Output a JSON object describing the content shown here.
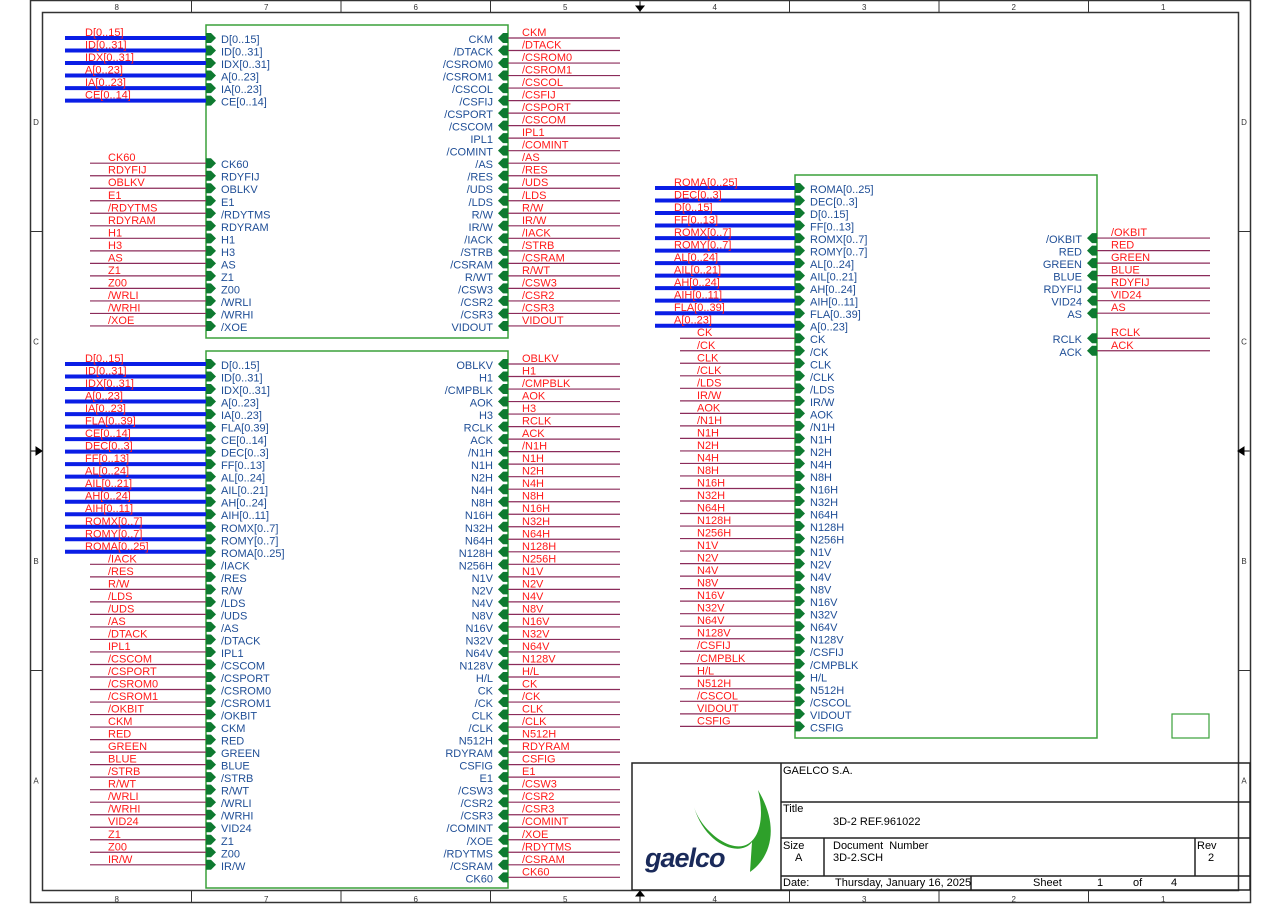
{
  "colors": {
    "bus": "#0a1ee6",
    "wire": "#8b2b5a",
    "net_label": "#ff1a1a",
    "pin_label": "#1f4e96",
    "block": "#3aa03a",
    "pin": "#0e7a30",
    "frame": "#333333"
  },
  "ruler": {
    "columns": [
      "8",
      "7",
      "6",
      "5",
      "4",
      "3",
      "2",
      "1"
    ],
    "rows": [
      "D",
      "C",
      "B",
      "A"
    ]
  },
  "blocks": [
    {
      "id": "block-1",
      "left_pins": [
        "D[0..15]",
        "ID[0..31]",
        "IDX[0..31]",
        "A[0..23]",
        "IA[0..23]",
        "CE[0..14]",
        "",
        "",
        "",
        "",
        "CK60",
        "RDYFIJ",
        "OBLKV",
        "E1",
        "/RDYTMS",
        "RDYRAM",
        "H1",
        "H3",
        "AS",
        "Z1",
        "Z00",
        "/WRLI",
        "/WRHI",
        "/XOE"
      ],
      "left_nets": [
        "D[0..15]",
        "ID[0..31]",
        "IDX[0..31]",
        "A[0..23]",
        "IA[0..23]",
        "CE[0..14]",
        "",
        "",
        "",
        "",
        "CK60",
        "RDYFIJ",
        "OBLKV",
        "E1",
        "/RDYTMS",
        "RDYRAM",
        "H1",
        "H3",
        "AS",
        "Z1",
        "Z00",
        "/WRLI",
        "/WRHI",
        "/XOE"
      ],
      "bus_count": 6,
      "right_pins": [
        "CKM",
        "/DTACK",
        "/CSROM0",
        "/CSROM1",
        "/CSCOL",
        "/CSFIJ",
        "/CSPORT",
        "/CSCOM",
        "IPL1",
        "/COMINT",
        "/AS",
        "/RES",
        "/UDS",
        "/LDS",
        "R/W",
        "IR/W",
        "/IACK",
        "/STRB",
        "/CSRAM",
        "R/WT",
        "/CSW3",
        "/CSR2",
        "/CSR3",
        "VIDOUT"
      ],
      "right_nets": [
        "CKM",
        "/DTACK",
        "/CSROM0",
        "/CSROM1",
        "/CSCOL",
        "/CSFIJ",
        "/CSPORT",
        "/CSCOM",
        "IPL1",
        "/COMINT",
        "/AS",
        "/RES",
        "/UDS",
        "/LDS",
        "R/W",
        "IR/W",
        "/IACK",
        "/STRB",
        "/CSRAM",
        "R/WT",
        "/CSW3",
        "/CSR2",
        "/CSR3",
        "VIDOUT"
      ]
    },
    {
      "id": "block-2",
      "left_pins": [
        "D[0..15]",
        "ID[0..31]",
        "IDX[0..31]",
        "A[0..23]",
        "IA[0..23]",
        "FLA[0.39]",
        "CE[0..14]",
        "DEC[0..3]",
        "FF[0..13]",
        "AL[0..24]",
        "AIL[0..21]",
        "AH[0..24]",
        "AIH[0..11]",
        "ROMX[0..7]",
        "ROMY[0..7]",
        "ROMA[0..25]",
        "/IACK",
        "/RES",
        "R/W",
        "/LDS",
        "/UDS",
        "/AS",
        "/DTACK",
        "IPL1",
        "/CSCOM",
        "/CSPORT",
        "/CSROM0",
        "/CSROM1",
        "/OKBIT",
        "CKM",
        "RED",
        "GREEN",
        "BLUE",
        "/STRB",
        "R/WT",
        "/WRLI",
        "/WRHI",
        "VID24",
        "Z1",
        "Z00",
        "IR/W"
      ],
      "left_nets": [
        "D[0..15]",
        "ID[0..31]",
        "IDX[0..31]",
        "A[0..23]",
        "IA[0..23]",
        "FLA[0..39]",
        "CE[0..14]",
        "DEC[0..3]",
        "FF[0..13]",
        "AL[0..24]",
        "AIL[0..21]",
        "AH[0..24]",
        "AIH[0..11]",
        "ROMX[0..7]",
        "ROMY[0..7]",
        "ROMA[0..25]",
        "/IACK",
        "/RES",
        "R/W",
        "/LDS",
        "/UDS",
        "/AS",
        "/DTACK",
        "IPL1",
        "/CSCOM",
        "/CSPORT",
        "/CSROM0",
        "/CSROM1",
        "/OKBIT",
        "CKM",
        "RED",
        "GREEN",
        "BLUE",
        "/STRB",
        "R/WT",
        "/WRLI",
        "/WRHI",
        "VID24",
        "Z1",
        "Z00",
        "IR/W"
      ],
      "bus_count": 16,
      "right_pins": [
        "OBLKV",
        "H1",
        "/CMPBLK",
        "AOK",
        "H3",
        "RCLK",
        "ACK",
        "/N1H",
        "N1H",
        "N2H",
        "N4H",
        "N8H",
        "N16H",
        "N32H",
        "N64H",
        "N128H",
        "N256H",
        "N1V",
        "N2V",
        "N4V",
        "N8V",
        "N16V",
        "N32V",
        "N64V",
        "N128V",
        "H/L",
        "CK",
        "/CK",
        "CLK",
        "/CLK",
        "N512H",
        "RDYRAM",
        "CSFIG",
        "E1",
        "/CSW3",
        "/CSR2",
        "/CSR3",
        "/COMINT",
        "/XOE",
        "/RDYTMS",
        "/CSRAM",
        "CK60"
      ],
      "right_nets": [
        "OBLKV",
        "H1",
        "/CMPBLK",
        "AOK",
        "H3",
        "RCLK",
        "ACK",
        "/N1H",
        "N1H",
        "N2H",
        "N4H",
        "N8H",
        "N16H",
        "N32H",
        "N64H",
        "N128H",
        "N256H",
        "N1V",
        "N2V",
        "N4V",
        "N8V",
        "N16V",
        "N32V",
        "N64V",
        "N128V",
        "H/L",
        "CK",
        "/CK",
        "CLK",
        "/CLK",
        "N512H",
        "RDYRAM",
        "CSFIG",
        "E1",
        "/CSW3",
        "/CSR2",
        "/CSR3",
        "/COMINT",
        "/XOE",
        "/RDYTMS",
        "/CSRAM",
        "CK60"
      ]
    },
    {
      "id": "block-3",
      "left_pins": [
        "ROMA[0..25]",
        "DEC[0..3]",
        "D[0..15]",
        "FF[0..13]",
        "ROMX[0..7]",
        "ROMY[0..7]",
        "AL[0..24]",
        "AIL[0..21]",
        "AH[0..24]",
        "AIH[0..11]",
        "FLA[0..39]",
        "A[0..23]",
        "CK",
        "/CK",
        "CLK",
        "/CLK",
        "/LDS",
        "IR/W",
        "AOK",
        "/N1H",
        "N1H",
        "N2H",
        "N4H",
        "N8H",
        "N16H",
        "N32H",
        "N64H",
        "N128H",
        "N256H",
        "N1V",
        "N2V",
        "N4V",
        "N8V",
        "N16V",
        "N32V",
        "N64V",
        "N128V",
        "/CSFIJ",
        "/CMPBLK",
        "H/L",
        "N512H",
        "/CSCOL",
        "VIDOUT",
        "CSFIG"
      ],
      "left_nets": [
        "ROMA[0..25]",
        "DEC[0..3]",
        "D[0..15]",
        "FF[0..13]",
        "ROMX[0..7]",
        "ROMY[0..7]",
        "AL[0..24]",
        "AIL[0..21]",
        "AH[0..24]",
        "AIH[0..11]",
        "FLA[0..39]",
        "A[0..23]",
        "CK",
        "/CK",
        "CLK",
        "/CLK",
        "/LDS",
        "IR/W",
        "AOK",
        "/N1H",
        "N1H",
        "N2H",
        "N4H",
        "N8H",
        "N16H",
        "N32H",
        "N64H",
        "N128H",
        "N256H",
        "N1V",
        "N2V",
        "N4V",
        "N8V",
        "N16V",
        "N32V",
        "N64V",
        "N128V",
        "/CSFIJ",
        "/CMPBLK",
        "H/L",
        "N512H",
        "/CSCOL",
        "VIDOUT",
        "CSFIG"
      ],
      "bus_count": 12,
      "right_pins": [
        "",
        "",
        "",
        "",
        "/OKBIT",
        "RED",
        "GREEN",
        "BLUE",
        "RDYFIJ",
        "VID24",
        "AS",
        "",
        "RCLK",
        "ACK"
      ],
      "right_nets": [
        "",
        "",
        "",
        "",
        "/OKBIT",
        "RED",
        "GREEN",
        "BLUE",
        "RDYFIJ",
        "VID24",
        "AS",
        "",
        "RCLK",
        "ACK"
      ]
    }
  ],
  "title_block": {
    "company": "GAELCO S.A.",
    "logo_text": "gaelco",
    "title_label": "Title",
    "title": "3D-2 REF.961022",
    "size_label": "Size",
    "size": "A",
    "doc_number_label": "Document  Number",
    "doc_number": "3D-2.SCH",
    "rev_label": "Rev",
    "rev": "2",
    "date_label": "Date:",
    "date": "Thursday, January 16, 2025",
    "sheet_label": "Sheet",
    "sheet": "1",
    "of_label": "of",
    "sheet_total": "4"
  }
}
